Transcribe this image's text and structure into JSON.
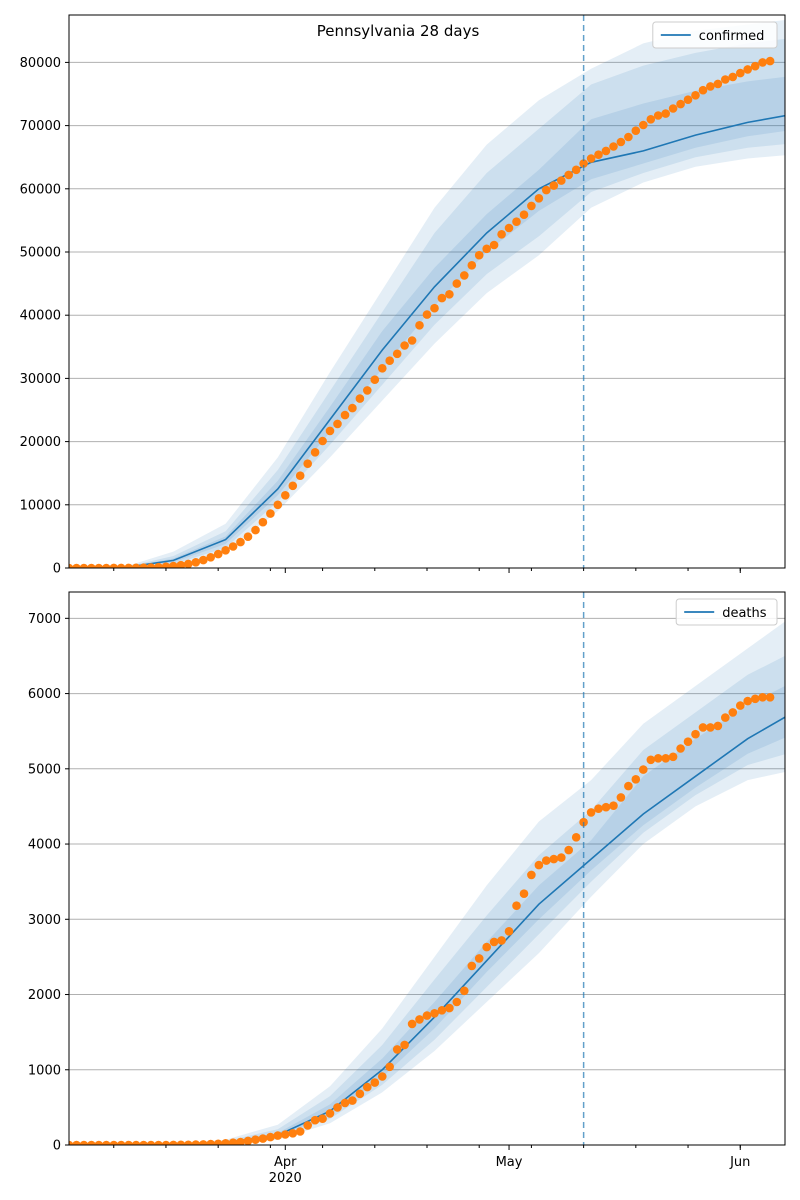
{
  "figure": {
    "title": "Pennsylvania 28 days",
    "vline_date": "2020-05-11",
    "x_tick_labels": [
      {
        "date": "2020-04-01",
        "label": "Apr",
        "sublabel": "2020"
      },
      {
        "date": "2020-05-01",
        "label": "May",
        "sublabel": ""
      },
      {
        "date": "2020-06-01",
        "label": "Jun",
        "sublabel": ""
      }
    ],
    "colors": {
      "model_line": "#1f77b4",
      "band": "#1f77b4",
      "observed": "#ff7f0e",
      "vline": "#1f77b4",
      "grid": "#b0b0b0"
    }
  },
  "chart_data": [
    {
      "type": "line",
      "title": "Pennsylvania 28 days",
      "xlabel": "",
      "ylabel": "",
      "x_range": [
        "2020-03-03",
        "2020-06-07"
      ],
      "ylim": [
        0,
        87500
      ],
      "yticks": [
        0,
        10000,
        20000,
        30000,
        40000,
        50000,
        60000,
        70000,
        80000
      ],
      "grid": "horizontal",
      "legend": {
        "position": "top-right",
        "entries": [
          "confirmed"
        ]
      },
      "observed": {
        "x_start": "2020-03-03",
        "step_days": 1,
        "values": [
          0,
          0,
          0,
          2,
          4,
          6,
          10,
          15,
          20,
          30,
          50,
          80,
          130,
          200,
          300,
          450,
          650,
          900,
          1250,
          1700,
          2200,
          2800,
          3400,
          4100,
          4950,
          6000,
          7250,
          8600,
          10000,
          11500,
          13000,
          14600,
          16500,
          18300,
          20100,
          21700,
          22800,
          24200,
          25300,
          26800,
          28100,
          29800,
          31600,
          32800,
          33900,
          35200,
          36000,
          38400,
          40100,
          41100,
          42700,
          43300,
          45000,
          46300,
          47900,
          49500,
          50500,
          51100,
          52800,
          53800,
          54800,
          55900,
          57300,
          58500,
          59800,
          60500,
          61300,
          62200,
          63000,
          64000,
          64800,
          65400,
          66000,
          66700,
          67400,
          68200,
          69200,
          70100,
          71000,
          71600,
          71900,
          72700,
          73400,
          74100,
          74800,
          75600,
          76200,
          76600,
          77300,
          77700,
          78300,
          78900,
          79400,
          80000,
          80200
        ]
      },
      "model": {
        "name": "confirmed",
        "x_start": "2020-03-03",
        "step_days": 7,
        "values": [
          0,
          3,
          1200,
          4500,
          12500,
          23500,
          34500,
          44500,
          53000,
          60000,
          64200,
          66000,
          68500,
          70500,
          72000
        ]
      },
      "bands": [
        {
          "level": "outer",
          "lower": [
            0,
            0,
            300,
            2500,
            9000,
            17500,
            26500,
            35500,
            43500,
            49500,
            57000,
            61000,
            63500,
            64800,
            65500
          ],
          "upper": [
            0,
            30,
            2600,
            7000,
            17500,
            31000,
            44000,
            57000,
            67000,
            74000,
            79000,
            83000,
            85000,
            86000,
            87000
          ]
        },
        {
          "level": "middle",
          "lower": [
            0,
            0,
            600,
            3200,
            10500,
            19500,
            29000,
            38500,
            46500,
            52500,
            59500,
            62500,
            65000,
            66500,
            67300
          ],
          "upper": [
            0,
            15,
            1900,
            5800,
            15500,
            28000,
            40500,
            53000,
            62500,
            69500,
            76500,
            79500,
            81500,
            83000,
            84000
          ]
        },
        {
          "level": "inner",
          "lower": [
            0,
            1,
            900,
            3800,
            11500,
            21500,
            31500,
            41500,
            50000,
            56500,
            61500,
            64000,
            66500,
            68300,
            69500
          ],
          "upper": [
            0,
            6,
            1500,
            5000,
            13800,
            25500,
            37500,
            47500,
            56000,
            63000,
            71000,
            73500,
            75500,
            77000,
            78000
          ]
        }
      ]
    },
    {
      "type": "line",
      "title": "",
      "xlabel": "",
      "ylabel": "",
      "x_range": [
        "2020-03-03",
        "2020-06-07"
      ],
      "ylim": [
        0,
        7350
      ],
      "yticks": [
        0,
        1000,
        2000,
        3000,
        4000,
        5000,
        6000,
        7000
      ],
      "grid": "horizontal",
      "legend": {
        "position": "top-right",
        "entries": [
          "deaths"
        ]
      },
      "observed": {
        "x_start": "2020-03-03",
        "step_days": 1,
        "values": [
          0,
          0,
          0,
          0,
          0,
          0,
          0,
          0,
          0,
          0,
          0,
          0,
          0,
          0,
          1,
          2,
          3,
          5,
          8,
          12,
          16,
          22,
          30,
          40,
          55,
          70,
          85,
          105,
          125,
          140,
          155,
          180,
          260,
          330,
          350,
          420,
          500,
          560,
          590,
          680,
          770,
          830,
          910,
          1040,
          1270,
          1330,
          1610,
          1670,
          1720,
          1750,
          1790,
          1820,
          1900,
          2050,
          2380,
          2480,
          2630,
          2700,
          2720,
          2840,
          3180,
          3340,
          3590,
          3720,
          3780,
          3800,
          3820,
          3920,
          4090,
          4290,
          4420,
          4470,
          4490,
          4510,
          4620,
          4770,
          4860,
          4990,
          5120,
          5140,
          5140,
          5160,
          5270,
          5360,
          5460,
          5550,
          5550,
          5570,
          5680,
          5750,
          5840,
          5900,
          5930,
          5950,
          5950
        ]
      },
      "model": {
        "name": "deaths",
        "x_start": "2020-03-03",
        "step_days": 7,
        "values": [
          0,
          0,
          5,
          30,
          130,
          450,
          1000,
          1700,
          2450,
          3200,
          3800,
          4400,
          4900,
          5400,
          5800
        ]
      },
      "bands": [
        {
          "level": "outer",
          "lower": [
            0,
            0,
            0,
            10,
            70,
            290,
            700,
            1250,
            1900,
            2550,
            3300,
            4000,
            4500,
            4850,
            5000
          ],
          "upper": [
            0,
            0,
            12,
            70,
            270,
            780,
            1550,
            2500,
            3450,
            4300,
            4850,
            5600,
            6100,
            6600,
            7100
          ]
        },
        {
          "level": "middle",
          "lower": [
            0,
            0,
            1,
            16,
            90,
            350,
            800,
            1400,
            2100,
            2800,
            3500,
            4150,
            4650,
            5050,
            5250
          ],
          "upper": [
            0,
            0,
            9,
            52,
            210,
            650,
            1330,
            2200,
            3050,
            3850,
            4450,
            5250,
            5750,
            6250,
            6600
          ]
        },
        {
          "level": "inner",
          "lower": [
            0,
            0,
            3,
            22,
            110,
            400,
            900,
            1550,
            2300,
            3000,
            3650,
            4250,
            4750,
            5200,
            5500
          ],
          "upper": [
            0,
            0,
            7,
            40,
            160,
            540,
            1150,
            1900,
            2700,
            3450,
            4050,
            4900,
            5400,
            5850,
            6200
          ]
        }
      ]
    }
  ]
}
